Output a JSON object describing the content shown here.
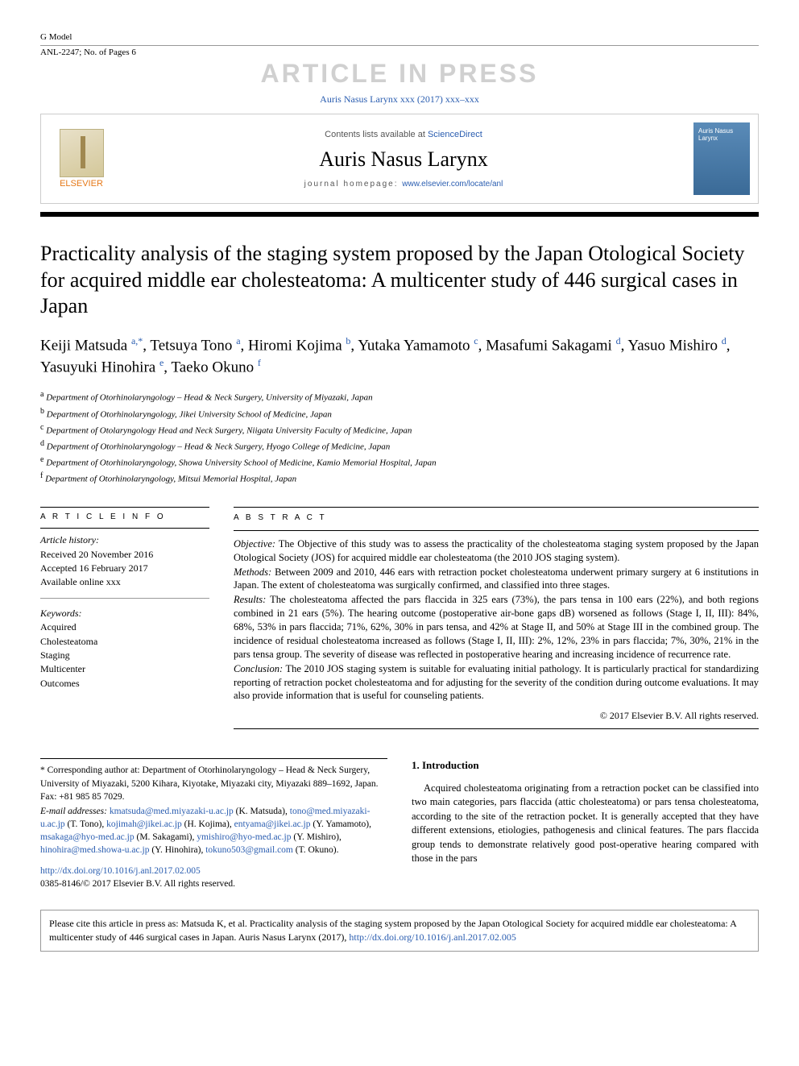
{
  "header": {
    "g_model": "G Model",
    "anl_ref": "ANL-2247; No. of Pages 6",
    "watermark": "ARTICLE IN PRESS",
    "citation_line": "Auris Nasus Larynx xxx (2017) xxx–xxx",
    "contents_prefix": "Contents lists available at ",
    "contents_link": "ScienceDirect",
    "journal_name": "Auris Nasus Larynx",
    "homepage_prefix": "journal homepage: ",
    "homepage_url": "www.elsevier.com/locate/anl",
    "elsevier": "ELSEVIER",
    "cover_text": "Auris Nasus Larynx"
  },
  "title": "Practicality analysis of the staging system proposed by the Japan Otological Society for acquired middle ear cholesteatoma: A multicenter study of 446 surgical cases in Japan",
  "authors_html": "Keiji Matsuda <sup>a,*</sup>, Tetsuya Tono <sup>a</sup>, Hiromi Kojima <sup>b</sup>, Yutaka Yamamoto <sup>c</sup>, Masafumi Sakagami <sup>d</sup>, Yasuo Mishiro <sup>d</sup>, Yasuyuki Hinohira <sup>e</sup>, Taeko Okuno <sup>f</sup>",
  "affiliations": [
    {
      "sup": "a",
      "text": "Department of Otorhinolaryngology – Head & Neck Surgery, University of Miyazaki, Japan"
    },
    {
      "sup": "b",
      "text": "Department of Otorhinolaryngology, Jikei University School of Medicine, Japan"
    },
    {
      "sup": "c",
      "text": "Department of Otolaryngology Head and Neck Surgery, Niigata University Faculty of Medicine, Japan"
    },
    {
      "sup": "d",
      "text": "Department of Otorhinolaryngology – Head & Neck Surgery, Hyogo College of Medicine, Japan"
    },
    {
      "sup": "e",
      "text": "Department of Otorhinolaryngology, Showa University School of Medicine, Kamio Memorial Hospital, Japan"
    },
    {
      "sup": "f",
      "text": "Department of Otorhinolaryngology, Mitsui Memorial Hospital, Japan"
    }
  ],
  "info": {
    "label": "A R T I C L E   I N F O",
    "history_label": "Article history:",
    "received": "Received 20 November 2016",
    "accepted": "Accepted 16 February 2017",
    "online": "Available online xxx",
    "keywords_label": "Keywords:",
    "keywords": [
      "Acquired",
      "Cholesteatoma",
      "Staging",
      "Multicenter",
      "Outcomes"
    ]
  },
  "abstract": {
    "label": "A B S T R A C T",
    "objective_label": "Objective:",
    "objective": " The Objective of this study was to assess the practicality of the cholesteatoma staging system proposed by the Japan Otological Society (JOS) for acquired middle ear cholesteatoma (the 2010 JOS staging system).",
    "methods_label": "Methods:",
    "methods": " Between 2009 and 2010, 446 ears with retraction pocket cholesteatoma underwent primary surgery at 6 institutions in Japan. The extent of cholesteatoma was surgically confirmed, and classified into three stages.",
    "results_label": "Results:",
    "results": " The cholesteatoma affected the pars flaccida in 325 ears (73%), the pars tensa in 100 ears (22%), and both regions combined in 21 ears (5%). The hearing outcome (postoperative air-bone gaps dB) worsened as follows (Stage I, II, III): 84%, 68%, 53% in pars flaccida; 71%, 62%, 30% in pars tensa, and 42% at Stage II, and 50% at Stage III in the combined group. The incidence of residual cholesteatoma increased as follows (Stage I, II, III): 2%, 12%, 23% in pars flaccida; 7%, 30%, 21% in the pars tensa group. The severity of disease was reflected in postoperative hearing and increasing incidence of recurrence rate.",
    "conclusion_label": "Conclusion:",
    "conclusion": " The 2010 JOS staging system is suitable for evaluating initial pathology. It is particularly practical for standardizing reporting of retraction pocket cholesteatoma and for adjusting for the severity of the condition during outcome evaluations. It may also provide information that is useful for counseling patients.",
    "copyright": "© 2017 Elsevier B.V. All rights reserved."
  },
  "footnote": {
    "corresponding": "* Corresponding author at: Department of Otorhinolaryngology – Head & Neck Surgery, University of Miyazaki, 5200 Kihara, Kiyotake, Miyazaki city, Miyazaki 889–1692, Japan. Fax: +81 985 85 7029.",
    "email_label": "E-mail addresses:",
    "emails": [
      {
        "addr": "kmatsuda@med.miyazaki-u.ac.jp",
        "who": " (K. Matsuda), "
      },
      {
        "addr": "tono@med.miyazaki-u.ac.jp",
        "who": " (T. Tono), "
      },
      {
        "addr": "kojimah@jikei.ac.jp",
        "who": " (H. Kojima), "
      },
      {
        "addr": "entyama@jikei.ac.jp",
        "who": " (Y. Yamamoto), "
      },
      {
        "addr": "msakaga@hyo-med.ac.jp",
        "who": " (M. Sakagami), "
      },
      {
        "addr": "ymishiro@hyo-med.ac.jp",
        "who": " (Y. Mishiro), "
      },
      {
        "addr": "hinohira@med.showa-u.ac.jp",
        "who": " (Y. Hinohira), "
      },
      {
        "addr": "tokuno503@gmail.com",
        "who": " (T. Okuno)."
      }
    ],
    "doi_url": "http://dx.doi.org/10.1016/j.anl.2017.02.005",
    "issn_copyright": "0385-8146/© 2017 Elsevier B.V. All rights reserved."
  },
  "intro": {
    "heading": "1. Introduction",
    "p1": "Acquired cholesteatoma originating from a retraction pocket can be classified into two main categories, pars flaccida (attic cholesteatoma) or pars tensa cholesteatoma, according to the site of the retraction pocket. It is generally accepted that they have different extensions, etiologies, pathogenesis and clinical features. The pars flaccida group tends to demonstrate relatively good post-operative hearing compared with those in the pars"
  },
  "citebox": {
    "prefix": "Please cite this article in press as: Matsuda K, et al. Practicality analysis of the staging system proposed by the Japan Otological Society for acquired middle ear cholesteatoma: A multicenter study of 446 surgical cases in Japan. Auris Nasus Larynx (2017), ",
    "url": "http://dx.doi.org/10.1016/j.anl.2017.02.005"
  },
  "colors": {
    "link": "#2a5db0",
    "elsevier_orange": "#e67817",
    "watermark_gray": "#d0d0d0",
    "cover_bg_top": "#5a8bb8",
    "cover_bg_bottom": "#3a6a97"
  }
}
